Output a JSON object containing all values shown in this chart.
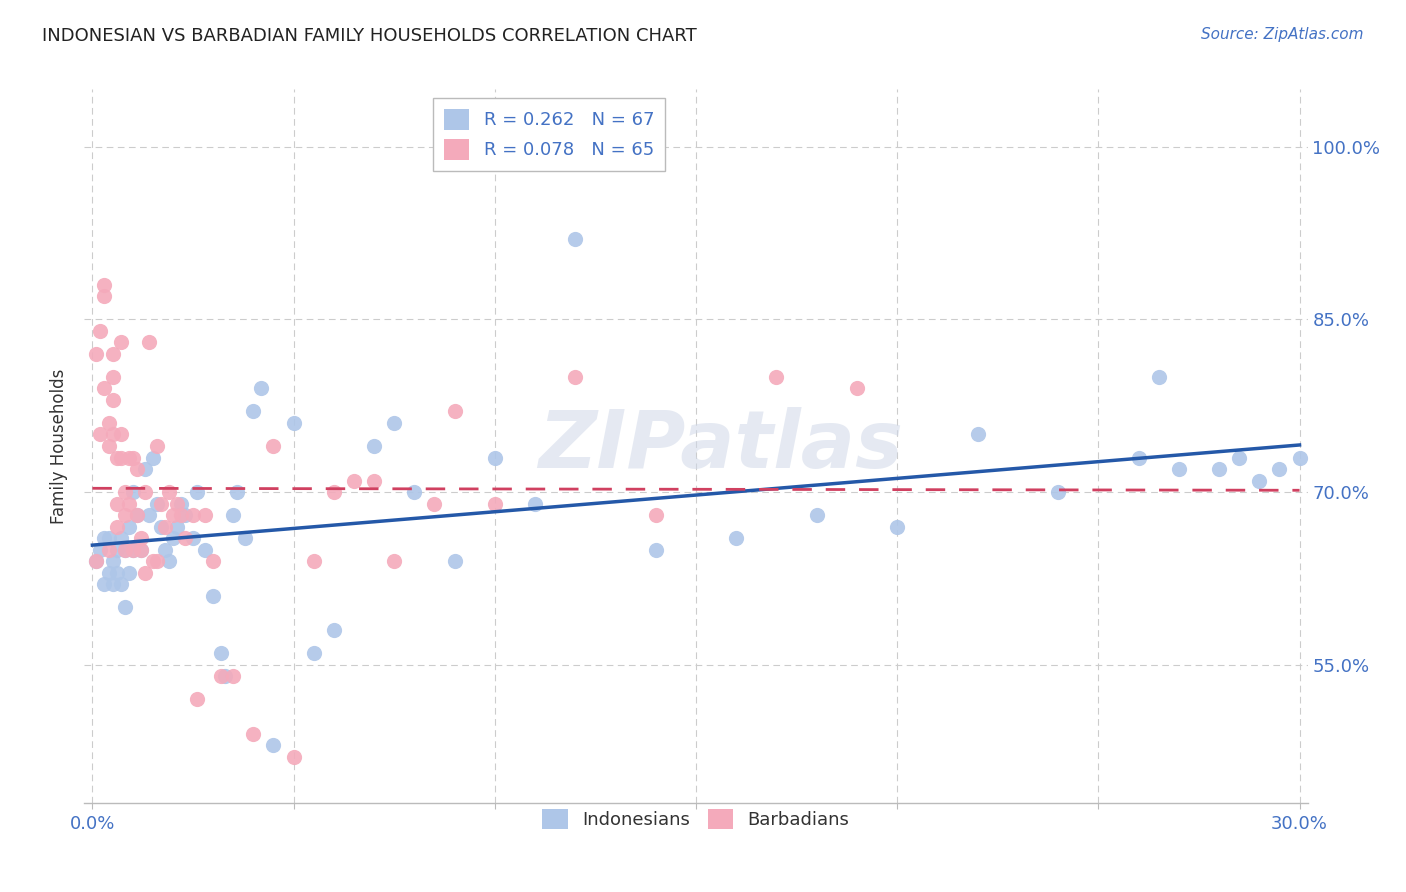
{
  "title": "INDONESIAN VS BARBADIAN FAMILY HOUSEHOLDS CORRELATION CHART",
  "source": "Source: ZipAtlas.com",
  "ylabel": "Family Households",
  "y_ticks": [
    "55.0%",
    "70.0%",
    "85.0%",
    "100.0%"
  ],
  "y_tick_vals": [
    0.55,
    0.7,
    0.85,
    1.0
  ],
  "x_lim": [
    -0.002,
    0.302
  ],
  "y_lim": [
    0.43,
    1.05
  ],
  "indonesian_color": "#AEC6E8",
  "barbadian_color": "#F4AABB",
  "trend_indonesian_color": "#2458A8",
  "trend_barbadian_color": "#D04060",
  "indonesian_x": [
    0.001,
    0.002,
    0.003,
    0.003,
    0.004,
    0.004,
    0.005,
    0.005,
    0.006,
    0.006,
    0.007,
    0.007,
    0.008,
    0.008,
    0.009,
    0.009,
    0.01,
    0.01,
    0.011,
    0.012,
    0.013,
    0.014,
    0.015,
    0.016,
    0.017,
    0.018,
    0.019,
    0.02,
    0.021,
    0.022,
    0.023,
    0.025,
    0.026,
    0.028,
    0.03,
    0.032,
    0.033,
    0.035,
    0.036,
    0.038,
    0.04,
    0.042,
    0.045,
    0.05,
    0.055,
    0.06,
    0.07,
    0.075,
    0.08,
    0.09,
    0.1,
    0.11,
    0.12,
    0.14,
    0.16,
    0.18,
    0.2,
    0.22,
    0.24,
    0.26,
    0.265,
    0.27,
    0.28,
    0.285,
    0.29,
    0.295,
    0.3
  ],
  "indonesian_y": [
    0.64,
    0.65,
    0.62,
    0.66,
    0.63,
    0.66,
    0.64,
    0.62,
    0.65,
    0.63,
    0.66,
    0.62,
    0.65,
    0.6,
    0.67,
    0.63,
    0.7,
    0.65,
    0.68,
    0.65,
    0.72,
    0.68,
    0.73,
    0.69,
    0.67,
    0.65,
    0.64,
    0.66,
    0.67,
    0.69,
    0.68,
    0.66,
    0.7,
    0.65,
    0.61,
    0.56,
    0.54,
    0.68,
    0.7,
    0.66,
    0.77,
    0.79,
    0.48,
    0.76,
    0.56,
    0.58,
    0.74,
    0.76,
    0.7,
    0.64,
    0.73,
    0.69,
    0.92,
    0.65,
    0.66,
    0.68,
    0.67,
    0.75,
    0.7,
    0.73,
    0.8,
    0.72,
    0.72,
    0.73,
    0.71,
    0.72,
    0.73
  ],
  "barbadian_x": [
    0.001,
    0.001,
    0.002,
    0.002,
    0.003,
    0.003,
    0.003,
    0.004,
    0.004,
    0.004,
    0.005,
    0.005,
    0.005,
    0.005,
    0.006,
    0.006,
    0.006,
    0.007,
    0.007,
    0.007,
    0.008,
    0.008,
    0.008,
    0.009,
    0.009,
    0.01,
    0.01,
    0.011,
    0.011,
    0.012,
    0.012,
    0.013,
    0.013,
    0.014,
    0.015,
    0.016,
    0.016,
    0.017,
    0.018,
    0.019,
    0.02,
    0.021,
    0.022,
    0.023,
    0.025,
    0.026,
    0.028,
    0.03,
    0.032,
    0.035,
    0.04,
    0.045,
    0.05,
    0.055,
    0.06,
    0.065,
    0.07,
    0.075,
    0.085,
    0.09,
    0.1,
    0.12,
    0.14,
    0.17,
    0.19
  ],
  "barbadian_y": [
    0.64,
    0.82,
    0.75,
    0.84,
    0.79,
    0.87,
    0.88,
    0.65,
    0.76,
    0.74,
    0.78,
    0.75,
    0.8,
    0.82,
    0.67,
    0.69,
    0.73,
    0.73,
    0.75,
    0.83,
    0.65,
    0.68,
    0.7,
    0.69,
    0.73,
    0.73,
    0.65,
    0.68,
    0.72,
    0.65,
    0.66,
    0.7,
    0.63,
    0.83,
    0.64,
    0.64,
    0.74,
    0.69,
    0.67,
    0.7,
    0.68,
    0.69,
    0.68,
    0.66,
    0.68,
    0.52,
    0.68,
    0.64,
    0.54,
    0.54,
    0.49,
    0.74,
    0.47,
    0.64,
    0.7,
    0.71,
    0.71,
    0.64,
    0.69,
    0.77,
    0.69,
    0.8,
    0.68,
    0.8,
    0.79
  ],
  "watermark": "ZIPatlas",
  "background_color": "#ffffff",
  "grid_color": "#cccccc"
}
